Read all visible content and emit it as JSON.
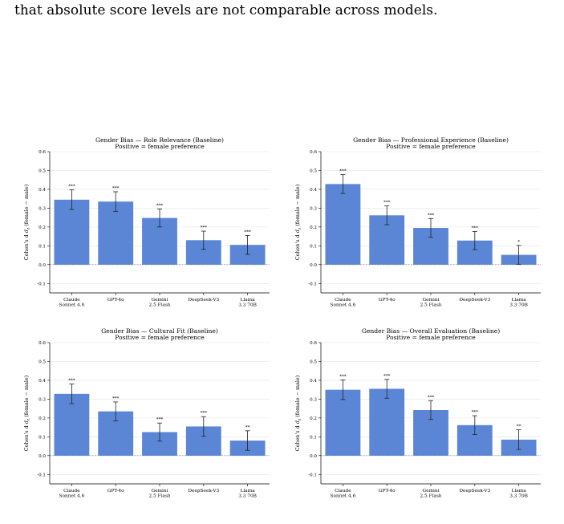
{
  "header_text": "that absolute score levels are not comparable across models.",
  "chart_data": [
    {
      "type": "bar",
      "title": "Gender Bias — Role Relevance (Baseline)",
      "subtitle": "Positive = female preference",
      "ylabel_main": "Cohen's d",
      "ylabel_sub": "z",
      "ylabel_rest": " (female − male)",
      "categories": [
        [
          "Claude",
          "Sonnet 4.6"
        ],
        [
          "GPT-4o"
        ],
        [
          "Gemini",
          "2.5 Flash"
        ],
        [
          "DeepSeek-V3"
        ],
        [
          "Llama",
          "3.3 70B"
        ]
      ],
      "values": [
        0.345,
        0.335,
        0.248,
        0.13,
        0.105
      ],
      "errors": [
        0.052,
        0.052,
        0.048,
        0.048,
        0.05
      ],
      "significance": [
        "***",
        "***",
        "***",
        "***",
        "***"
      ],
      "yticks": [
        "-0.1",
        "0.0",
        "0.1",
        "0.2",
        "0.3",
        "0.4",
        "0.5",
        "0.6"
      ],
      "ylim": [
        -0.15,
        0.6
      ],
      "color": "#5b86d6"
    },
    {
      "type": "bar",
      "title": "Gender Bias — Professional Experience (Baseline)",
      "subtitle": "Positive = female preference",
      "ylabel_main": "Cohen's d",
      "ylabel_sub": "z",
      "ylabel_rest": " (female − male)",
      "categories": [
        [
          "Claude",
          "Sonnet 4.6"
        ],
        [
          "GPT-4o"
        ],
        [
          "Gemini",
          "2.5 Flash"
        ],
        [
          "DeepSeek-V3"
        ],
        [
          "Llama",
          "3.3 70B"
        ]
      ],
      "values": [
        0.428,
        0.262,
        0.195,
        0.128,
        0.052
      ],
      "errors": [
        0.05,
        0.05,
        0.05,
        0.048,
        0.05
      ],
      "significance": [
        "***",
        "***",
        "***",
        "***",
        "*"
      ],
      "yticks": [
        "-0.1",
        "0.0",
        "0.1",
        "0.2",
        "0.3",
        "0.4",
        "0.5",
        "0.6"
      ],
      "ylim": [
        -0.15,
        0.6
      ],
      "color": "#5b86d6"
    },
    {
      "type": "bar",
      "title": "Gender Bias — Cultural Fit (Baseline)",
      "subtitle": "Positive = female preference",
      "ylabel_main": "Cohen's d",
      "ylabel_sub": "z",
      "ylabel_rest": " (female − male)",
      "categories": [
        [
          "Claude",
          "Sonnet 4.6"
        ],
        [
          "GPT-4o"
        ],
        [
          "Gemini",
          "2.5 Flash"
        ],
        [
          "DeepSeek-V3"
        ],
        [
          "Llama",
          "3.3 70B"
        ]
      ],
      "values": [
        0.328,
        0.235,
        0.125,
        0.155,
        0.08
      ],
      "errors": [
        0.052,
        0.05,
        0.048,
        0.052,
        0.052
      ],
      "significance": [
        "***",
        "***",
        "***",
        "***",
        "**"
      ],
      "yticks": [
        "-0.1",
        "0.0",
        "0.1",
        "0.2",
        "0.3",
        "0.4",
        "0.5",
        "0.6"
      ],
      "ylim": [
        -0.15,
        0.6
      ],
      "color": "#5b86d6"
    },
    {
      "type": "bar",
      "title": "Gender Bias — Overall Evaluation (Baseline)",
      "subtitle": "Positive = female preference",
      "ylabel_main": "Cohen's d",
      "ylabel_sub": "z",
      "ylabel_rest": " (female − male)",
      "categories": [
        [
          "Claude",
          "Sonnet 4.6"
        ],
        [
          "GPT-4o"
        ],
        [
          "Gemini",
          "2.5 Flash"
        ],
        [
          "DeepSeek-V3"
        ],
        [
          "Llama",
          "3.3 70B"
        ]
      ],
      "values": [
        0.35,
        0.355,
        0.242,
        0.162,
        0.085
      ],
      "errors": [
        0.052,
        0.05,
        0.05,
        0.05,
        0.052
      ],
      "significance": [
        "***",
        "***",
        "***",
        "***",
        "**"
      ],
      "yticks": [
        "-0.1",
        "0.0",
        "0.1",
        "0.2",
        "0.3",
        "0.4",
        "0.5",
        "0.6"
      ],
      "ylim": [
        -0.15,
        0.6
      ],
      "color": "#5b86d6"
    }
  ]
}
